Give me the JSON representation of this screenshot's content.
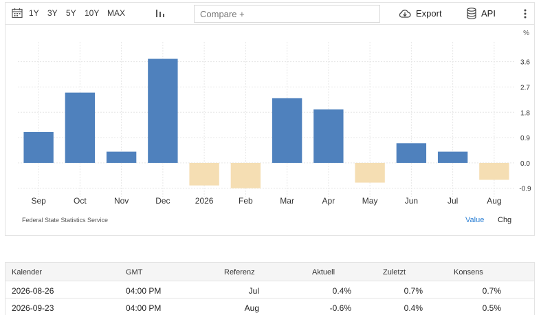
{
  "toolbar": {
    "ranges": [
      "1Y",
      "3Y",
      "5Y",
      "10Y",
      "MAX"
    ],
    "compare_placeholder": "Compare +",
    "export_label": "Export",
    "api_label": "API"
  },
  "chart_data": {
    "type": "bar",
    "categories": [
      "Sep",
      "Oct",
      "Nov",
      "Dec",
      "2026",
      "Feb",
      "Mar",
      "Apr",
      "May",
      "Jun",
      "Jul",
      "Aug"
    ],
    "values": [
      1.1,
      2.5,
      0.4,
      3.7,
      -0.8,
      -0.9,
      2.3,
      1.9,
      -0.7,
      0.7,
      0.4,
      -0.6
    ],
    "y_ticks": [
      3.6,
      2.7,
      1.8,
      0.9,
      0.0,
      -0.9
    ],
    "y_tick_labels": [
      "3.6",
      "2.7",
      "1.8",
      "0.9",
      "0.0",
      "-0.9"
    ],
    "ylim": [
      -1.2,
      4.3
    ],
    "unit": "%",
    "colors": {
      "positive": "#4f81bd",
      "negative": "#f5deb3",
      "grid": "#e6e6e6"
    },
    "grid": true,
    "source": "Federal State Statistics Service",
    "views": [
      "Value",
      "Chg"
    ]
  },
  "table": {
    "headers": [
      "Kalender",
      "GMT",
      "Referenz",
      "Aktuell",
      "Zuletzt",
      "Konsens"
    ],
    "rows": [
      [
        "2026-08-26",
        "04:00 PM",
        "Jul",
        "0.4%",
        "0.7%",
        "0.7%"
      ],
      [
        "2026-09-23",
        "04:00 PM",
        "Aug",
        "-0.6%",
        "0.4%",
        "0.5%"
      ]
    ]
  }
}
